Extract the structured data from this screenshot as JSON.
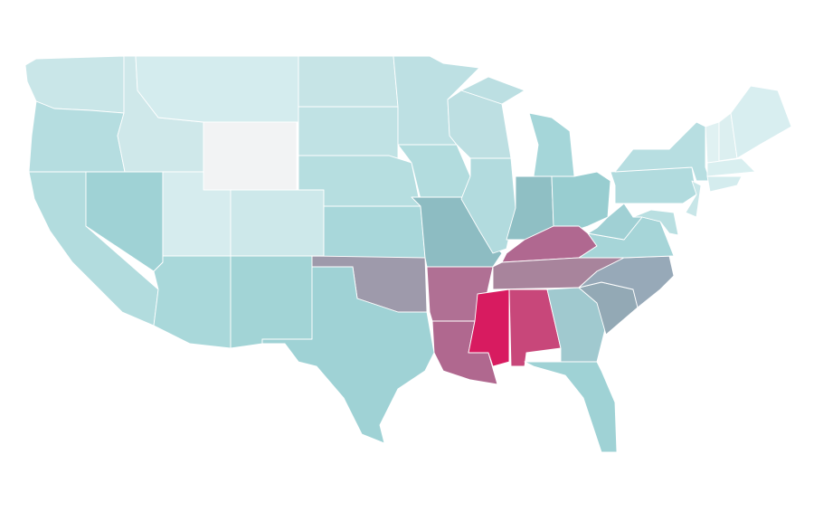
{
  "map": {
    "fills": [
      "#c9e6e8",
      "#b5dde0",
      "#b2dcde",
      "#9fd2d5",
      "#cfe8ea",
      "#d4ecee",
      "#f2f3f4",
      "#d6ecee",
      "#cde8ea",
      "#a9d8da",
      "#a2d4d6",
      "#c6e4e6",
      "#c0e2e4",
      "#b6dee0",
      "#a8d7da",
      "#9e9aab",
      "#9fd2d5",
      "#bde0e3",
      "#b2dcde",
      "#8dbcc2",
      "#b07094",
      "#b0688f",
      "#bddfe2",
      "#b2dbde",
      "#bcdfe2",
      "#a5d6d9",
      "#8fbfc4",
      "#98cdd0",
      "#b06890",
      "#a8849c",
      "#d81b60",
      "#c8477a",
      "#a0c9cf",
      "#9fd2d5",
      "#93a9b5",
      "#97a9b8",
      "#a6d5d8",
      "#a0d0d4",
      "#b1dbde",
      "#b7dee1",
      "#b9dfe1",
      "#c8e6e8",
      "#e0f1f2",
      "#dceff0",
      "#d8eef0",
      "#d9eff0",
      "#d4ecee"
    ]
  }
}
